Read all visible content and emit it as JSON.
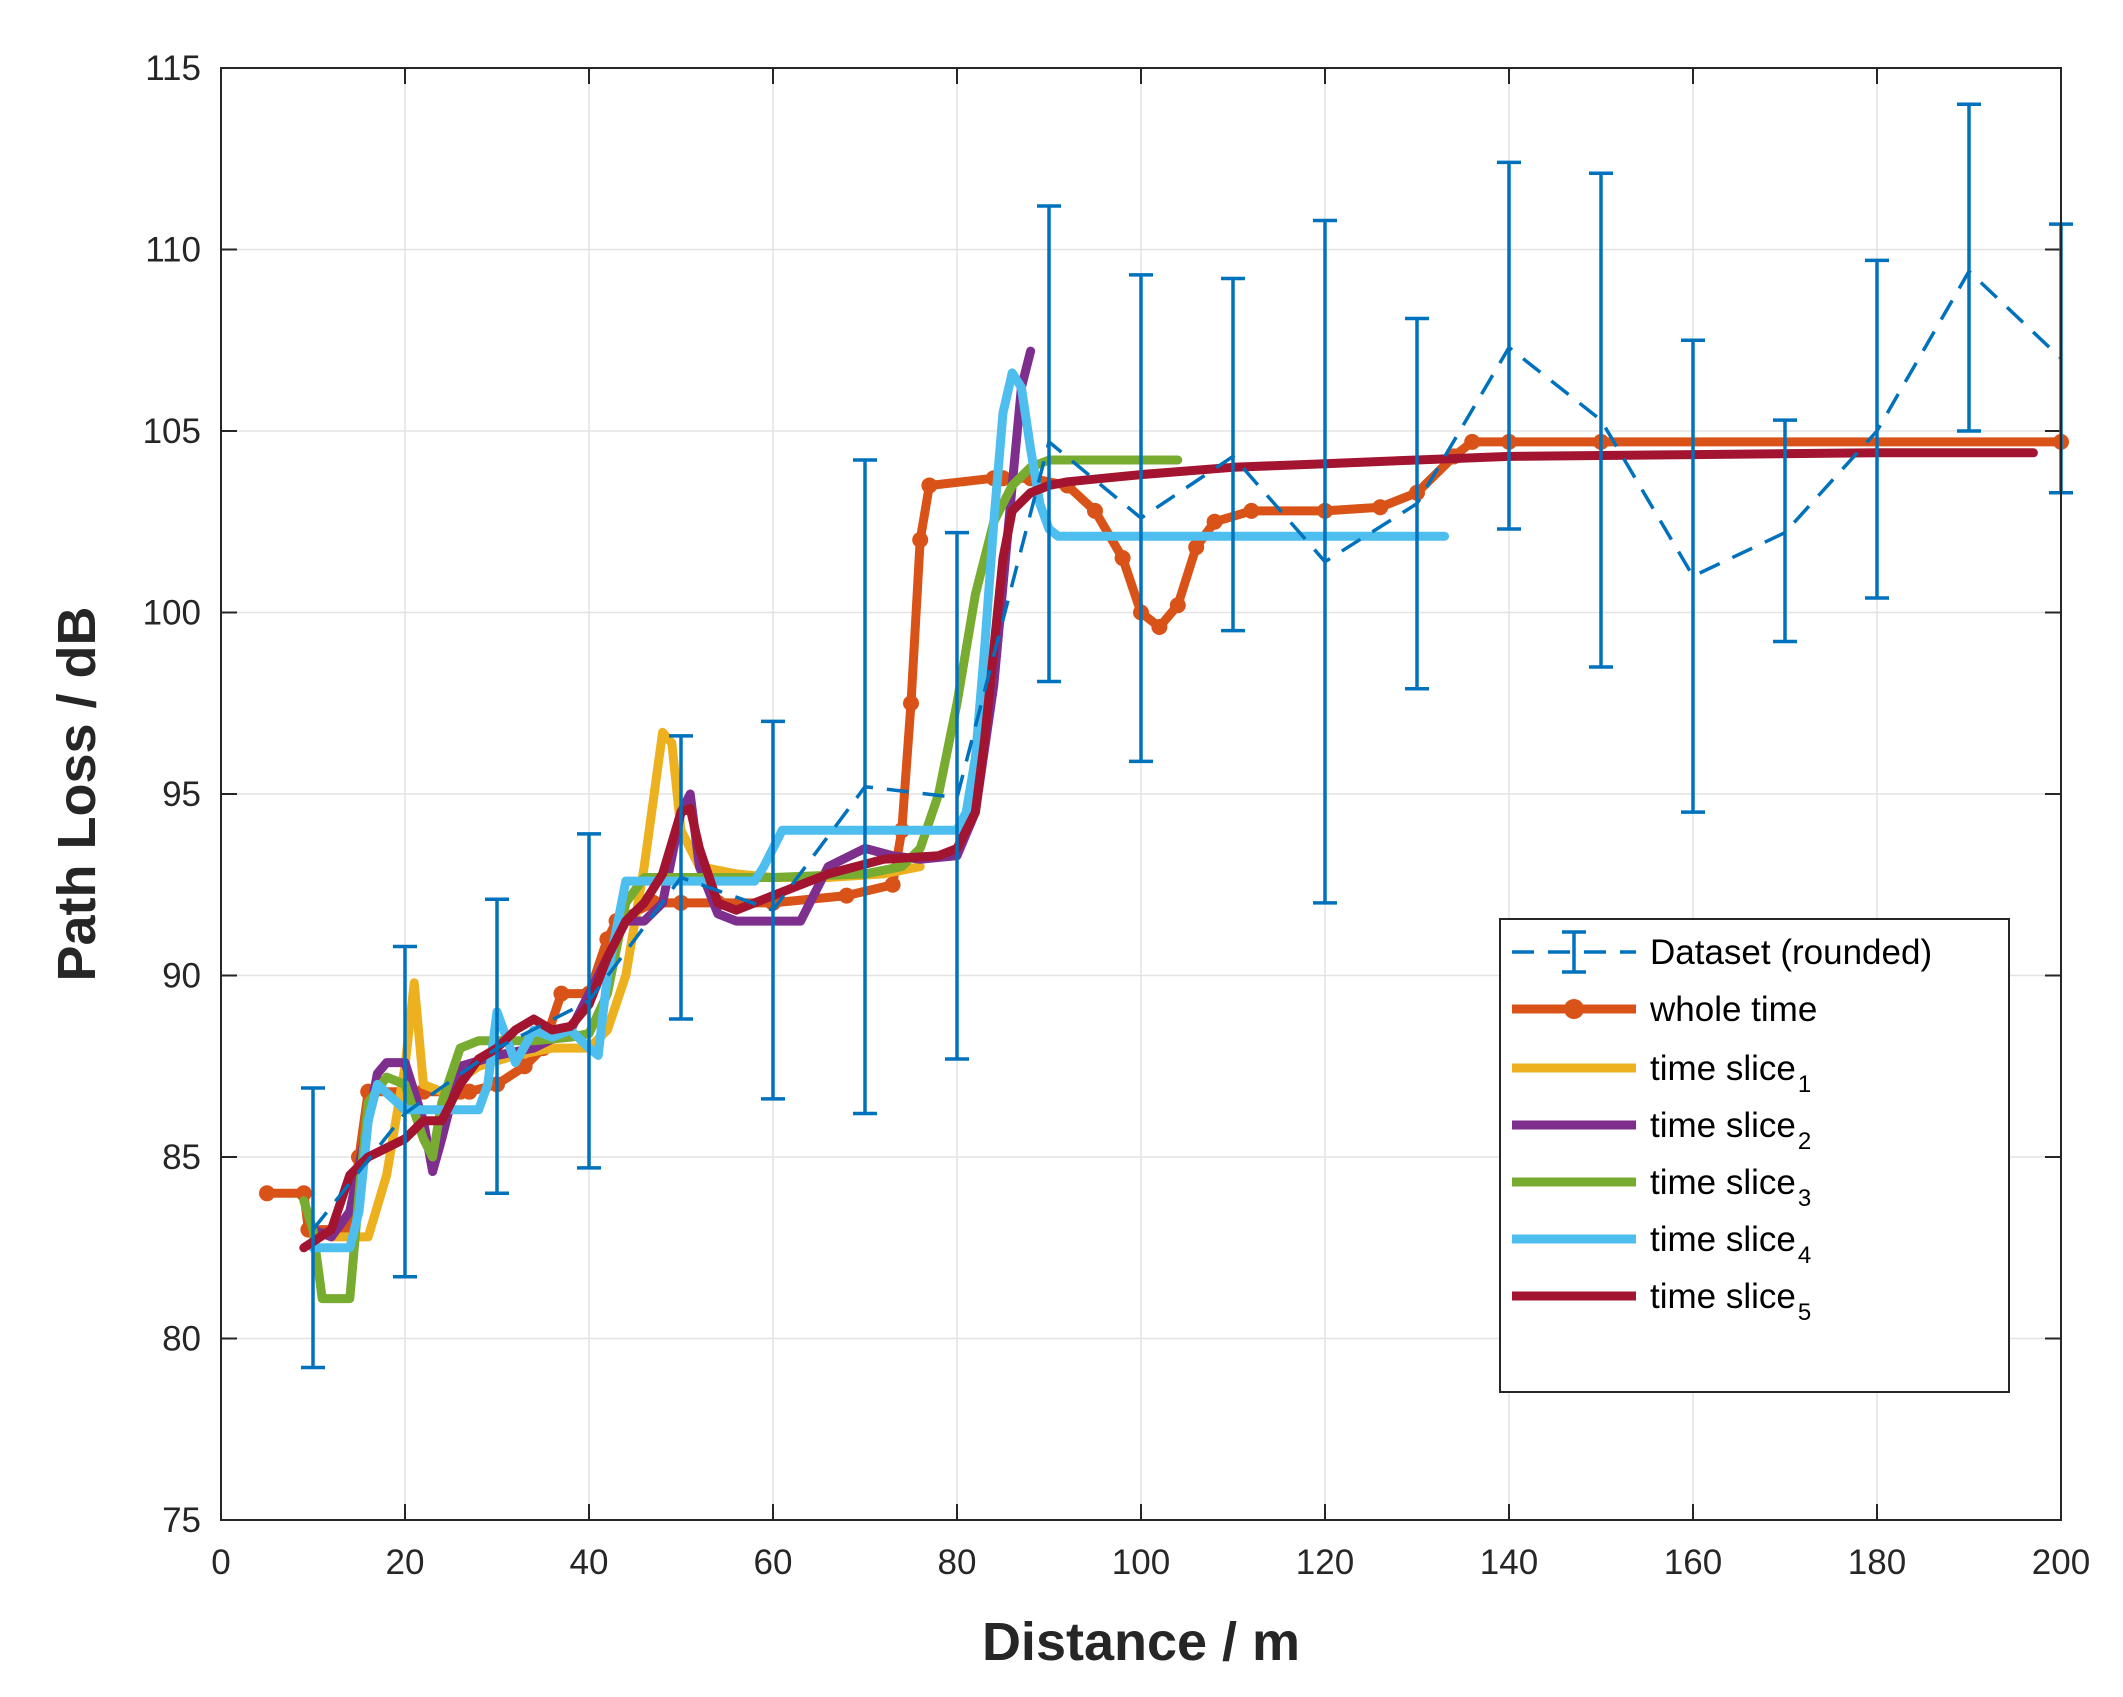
{
  "chart_data": {
    "type": "line",
    "title": "",
    "xlabel": "Distance / m",
    "ylabel": "Path Loss / dB",
    "xlim": [
      0,
      200
    ],
    "ylim": [
      75,
      115
    ],
    "xticks": [
      0,
      20,
      40,
      60,
      80,
      100,
      120,
      140,
      160,
      180,
      200
    ],
    "yticks": [
      75,
      80,
      85,
      90,
      95,
      100,
      105,
      110,
      115
    ],
    "grid": true,
    "legend_position": "right",
    "dataset": {
      "name": "Dataset (rounded)",
      "color": "#0072BD",
      "x": [
        10,
        20,
        30,
        40,
        50,
        60,
        70,
        80,
        90,
        100,
        110,
        120,
        130,
        140,
        150,
        160,
        170,
        180,
        190,
        200
      ],
      "y": [
        83.0,
        86.2,
        88.0,
        89.3,
        92.7,
        91.8,
        95.2,
        94.9,
        104.7,
        102.6,
        104.3,
        101.4,
        103.0,
        107.3,
        105.3,
        101.0,
        102.2,
        105.0,
        109.4,
        107.0
      ],
      "lower": [
        79.2,
        81.7,
        84.0,
        84.7,
        88.8,
        86.6,
        86.2,
        87.7,
        98.1,
        95.9,
        99.5,
        92.0,
        97.9,
        102.3,
        98.5,
        94.5,
        99.2,
        100.4,
        105.0,
        103.3
      ],
      "upper": [
        86.9,
        90.8,
        92.1,
        93.9,
        96.6,
        97.0,
        104.2,
        102.2,
        111.2,
        109.3,
        109.2,
        110.8,
        108.1,
        112.4,
        112.1,
        107.5,
        105.3,
        109.7,
        114.0,
        110.7
      ]
    },
    "series": [
      {
        "name": "whole time",
        "color": "#D95319",
        "x": [
          5,
          9,
          9.5,
          14,
          15,
          16,
          20,
          22,
          26,
          27,
          30,
          33,
          35,
          37,
          40,
          42,
          43,
          47,
          50,
          54,
          60,
          68,
          73,
          74,
          75,
          76,
          77,
          84,
          85,
          88,
          92,
          95,
          98,
          100,
          102,
          104,
          106,
          108,
          112,
          120,
          126,
          130,
          134,
          136,
          140,
          150,
          200
        ],
        "y": [
          84.0,
          84.0,
          83.0,
          83.0,
          85.0,
          86.8,
          86.8,
          86.8,
          86.8,
          86.8,
          87.0,
          87.5,
          88.0,
          89.5,
          89.5,
          91.0,
          91.5,
          92.0,
          92.0,
          92.0,
          92.0,
          92.2,
          92.5,
          94.0,
          97.5,
          102.0,
          103.5,
          103.7,
          103.7,
          103.7,
          103.5,
          102.8,
          101.5,
          100.0,
          99.6,
          100.2,
          101.8,
          102.5,
          102.8,
          102.8,
          102.9,
          103.3,
          104.3,
          104.7,
          104.7,
          104.7,
          104.7
        ],
        "marker": "circle"
      },
      {
        "name": "time slice1",
        "color": "#EDB120",
        "x": [
          10,
          12,
          14,
          16,
          18,
          20,
          21,
          22,
          24,
          28,
          32,
          36,
          40,
          42,
          44,
          46,
          48,
          49,
          50,
          52,
          56,
          60,
          66,
          72,
          76
        ],
        "y": [
          83.0,
          82.8,
          82.8,
          82.8,
          84.5,
          87.5,
          89.8,
          87.0,
          86.8,
          87.5,
          87.8,
          88.0,
          88.0,
          88.5,
          90.0,
          93.0,
          96.7,
          96.4,
          94.0,
          93.0,
          92.8,
          92.7,
          92.7,
          92.8,
          93.0
        ],
        "marker": "none"
      },
      {
        "name": "time slice2",
        "color": "#7E2F8E",
        "x": [
          10,
          12,
          14,
          16,
          17,
          18,
          20,
          22,
          23,
          24,
          26,
          30,
          34,
          38,
          42,
          44,
          46,
          48,
          50,
          51,
          52,
          54,
          56,
          60,
          63,
          66,
          70,
          73,
          76,
          80,
          82,
          84,
          86,
          87,
          88
        ],
        "y": [
          83.0,
          82.8,
          83.5,
          86.0,
          87.3,
          87.6,
          87.6,
          86.0,
          84.6,
          85.5,
          87.5,
          87.8,
          88.0,
          88.5,
          90.5,
          91.5,
          91.5,
          92.0,
          94.5,
          95.0,
          93.0,
          91.7,
          91.5,
          91.5,
          91.5,
          93.0,
          93.5,
          93.3,
          93.2,
          93.3,
          94.5,
          98.0,
          103.5,
          106.2,
          107.2
        ],
        "marker": "none"
      },
      {
        "name": "time slice3",
        "color": "#77AC30",
        "x": [
          9,
          10,
          11,
          12,
          13,
          14,
          15,
          16,
          18,
          20,
          22,
          23,
          24,
          26,
          28,
          30,
          34,
          38,
          40,
          42,
          44,
          46,
          50,
          60,
          70,
          74,
          76,
          78,
          80,
          82,
          84,
          86,
          88,
          90,
          92,
          96,
          104
        ],
        "y": [
          83.8,
          83.0,
          81.1,
          81.1,
          81.1,
          81.1,
          84.0,
          86.5,
          87.2,
          87.0,
          85.5,
          85.0,
          86.5,
          88.0,
          88.2,
          88.2,
          88.2,
          88.3,
          88.4,
          89.5,
          92.0,
          92.7,
          92.7,
          92.7,
          92.8,
          93.0,
          93.5,
          95.0,
          97.5,
          100.5,
          102.5,
          103.5,
          104.0,
          104.2,
          104.2,
          104.2,
          104.2
        ],
        "marker": "none"
      },
      {
        "name": "time slice4",
        "color": "#4DBEEE",
        "x": [
          10,
          12,
          14,
          15,
          16,
          17,
          20,
          22,
          24,
          28,
          29,
          30,
          32,
          34,
          36,
          38,
          40,
          41,
          42,
          44,
          46,
          50,
          54,
          58,
          59,
          61,
          66,
          72,
          76,
          80,
          81,
          82,
          83,
          84,
          85,
          86,
          87,
          88,
          89,
          90,
          91,
          92,
          96,
          100,
          110,
          120,
          133
        ],
        "y": [
          82.5,
          82.5,
          82.5,
          83.5,
          86.0,
          87.0,
          86.3,
          86.3,
          86.3,
          86.3,
          87.0,
          89.0,
          87.6,
          88.5,
          88.3,
          88.5,
          88.0,
          87.8,
          90.0,
          92.6,
          92.6,
          92.6,
          92.6,
          92.6,
          93.0,
          94.0,
          94.0,
          94.0,
          94.0,
          94.0,
          94.5,
          96.0,
          99.0,
          102.5,
          105.5,
          106.6,
          106.2,
          104.5,
          103.0,
          102.3,
          102.1,
          102.1,
          102.1,
          102.1,
          102.1,
          102.1,
          102.1
        ],
        "marker": "none"
      },
      {
        "name": "time slice5",
        "color": "#A2142F",
        "x": [
          9,
          12,
          14,
          16,
          20,
          22,
          24,
          26,
          28,
          30,
          32,
          34,
          36,
          38,
          40,
          42,
          44,
          46,
          48,
          50,
          51,
          52,
          54,
          56,
          60,
          66,
          72,
          78,
          80,
          82,
          83,
          84,
          85,
          86,
          88,
          90,
          92,
          96,
          100,
          110,
          120,
          130,
          140,
          160,
          180,
          197
        ],
        "y": [
          82.5,
          83.0,
          84.5,
          85.0,
          85.5,
          86.0,
          86.0,
          87.0,
          87.7,
          88.0,
          88.5,
          88.8,
          88.5,
          88.6,
          89.2,
          90.5,
          91.5,
          92.0,
          92.8,
          94.5,
          94.6,
          93.5,
          92.0,
          91.8,
          92.2,
          92.8,
          93.2,
          93.3,
          93.5,
          94.5,
          96.5,
          99.0,
          101.5,
          102.8,
          103.3,
          103.5,
          103.6,
          103.7,
          103.8,
          104.0,
          104.1,
          104.2,
          104.3,
          104.35,
          104.4,
          104.4
        ],
        "marker": "none"
      }
    ],
    "legend": {
      "entries": [
        {
          "label": "Dataset (rounded)",
          "sub": "",
          "color": "#0072BD",
          "style": "errorbar"
        },
        {
          "label": "whole time",
          "sub": "",
          "color": "#D95319",
          "style": "marker"
        },
        {
          "label": "time slice",
          "sub": "1",
          "color": "#EDB120",
          "style": "line"
        },
        {
          "label": "time slice",
          "sub": "2",
          "color": "#7E2F8E",
          "style": "line"
        },
        {
          "label": "time slice",
          "sub": "3",
          "color": "#77AC30",
          "style": "line"
        },
        {
          "label": "time slice",
          "sub": "4",
          "color": "#4DBEEE",
          "style": "line"
        },
        {
          "label": "time slice",
          "sub": "5",
          "color": "#A2142F",
          "style": "line"
        }
      ]
    }
  }
}
